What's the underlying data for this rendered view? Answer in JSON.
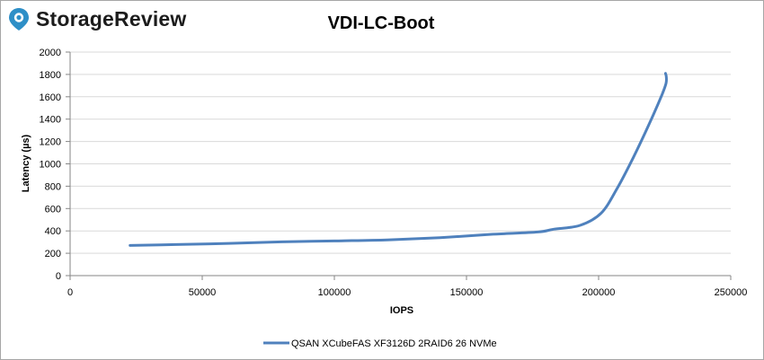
{
  "brand": {
    "logo_text": "StorageReview",
    "logo_color": "#2e8fc7"
  },
  "chart_data": {
    "type": "line",
    "title": "VDI-LC-Boot",
    "xlabel": "IOPS",
    "ylabel": "Latency (µs)",
    "xlim": [
      0,
      250000
    ],
    "ylim": [
      0,
      2000
    ],
    "x_ticks": [
      "0",
      "50000",
      "100000",
      "150000",
      "200000",
      "250000"
    ],
    "y_ticks": [
      "0",
      "200",
      "400",
      "600",
      "800",
      "1000",
      "1200",
      "1400",
      "1600",
      "1800",
      "2000"
    ],
    "grid": true,
    "legend_position": "bottom",
    "series": [
      {
        "name": "QSAN XCubeFAS XF3126D 2RAID6 26 NVMe",
        "color": "#4f81bd",
        "points": [
          [
            22700,
            270
          ],
          [
            40000,
            278
          ],
          [
            60000,
            288
          ],
          [
            80000,
            302
          ],
          [
            100000,
            310
          ],
          [
            120000,
            320
          ],
          [
            140000,
            340
          ],
          [
            160000,
            370
          ],
          [
            177000,
            390
          ],
          [
            183000,
            415
          ],
          [
            193000,
            450
          ],
          [
            201000,
            560
          ],
          [
            207000,
            780
          ],
          [
            213000,
            1050
          ],
          [
            219000,
            1350
          ],
          [
            224000,
            1620
          ],
          [
            225500,
            1720
          ],
          [
            225600,
            1780
          ],
          [
            225300,
            1810
          ]
        ]
      }
    ]
  }
}
